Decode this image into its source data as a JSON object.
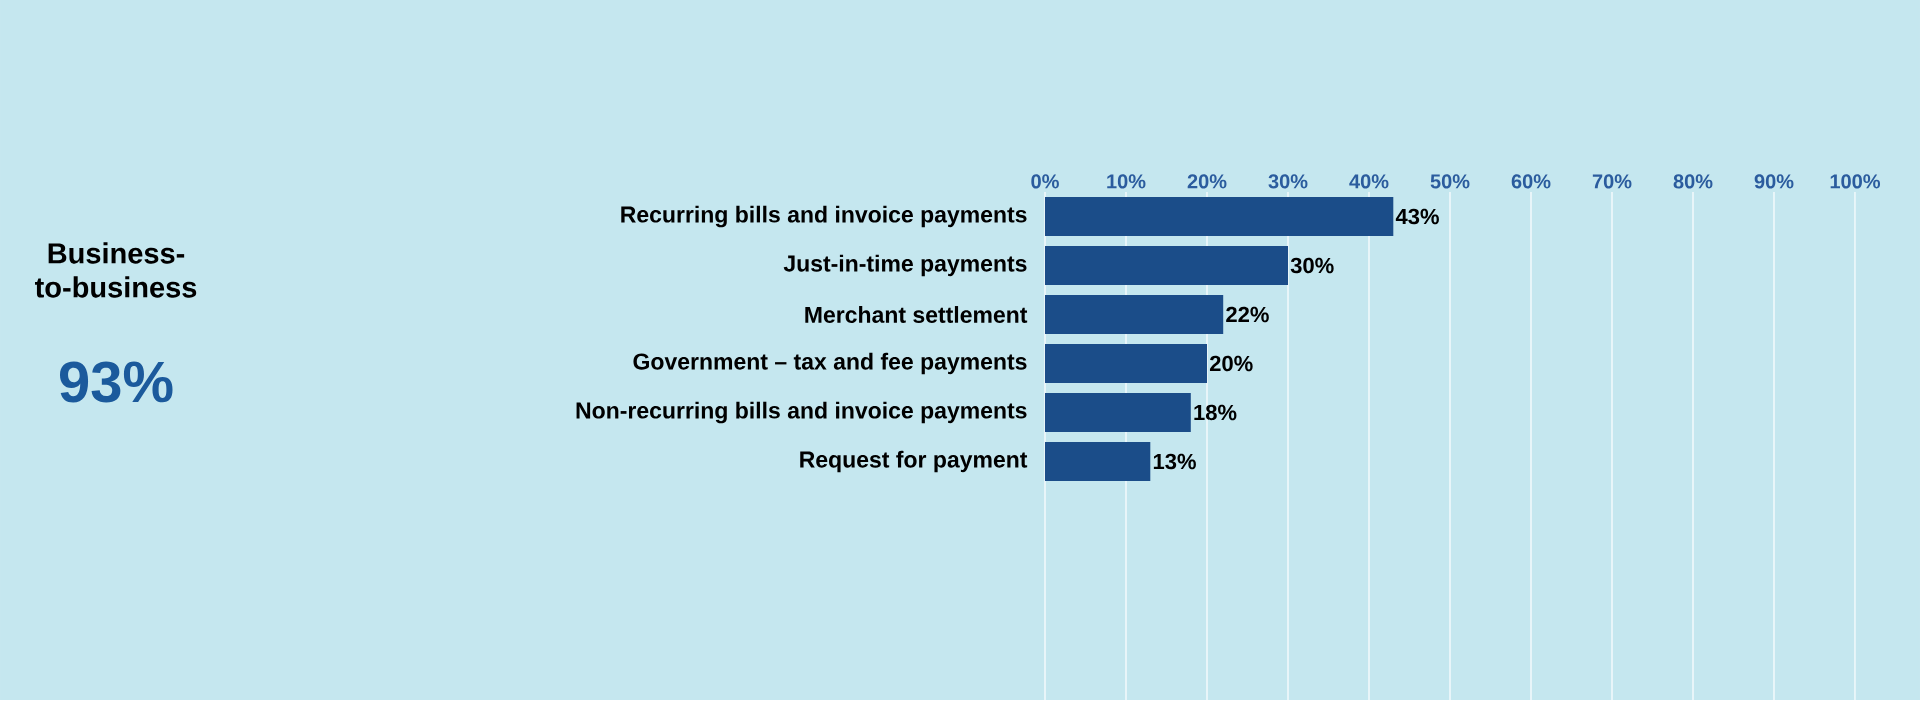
{
  "chart_data": {
    "type": "bar",
    "orientation": "horizontal",
    "title": "Business-to-business",
    "subtitle": "93%",
    "categories": [
      "Recurring bills and invoice payments",
      "Just-in-time payments",
      "Merchant settlement",
      "Government – tax and fee payments",
      "Non-recurring bills and invoice payments",
      "Request for payment"
    ],
    "values": [
      43,
      30,
      22,
      20,
      18,
      13
    ],
    "value_labels": [
      "43%",
      "30%",
      "22%",
      "20%",
      "18%",
      "13%"
    ],
    "color": "#1b4d89",
    "xlim": [
      0,
      100
    ],
    "xticks": [
      {
        "value": 0,
        "label": "0%"
      },
      {
        "value": 10,
        "label": "10%"
      },
      {
        "value": 20,
        "label": "20%"
      },
      {
        "value": 30,
        "label": "30%"
      },
      {
        "value": 40,
        "label": "40%"
      },
      {
        "value": 50,
        "label": "50%"
      },
      {
        "value": 60,
        "label": "60%"
      },
      {
        "value": 70,
        "label": "70%"
      },
      {
        "value": 80,
        "label": "80%"
      },
      {
        "value": 90,
        "label": "90%"
      },
      {
        "value": 100,
        "label": "100%"
      }
    ],
    "grid": "x"
  }
}
